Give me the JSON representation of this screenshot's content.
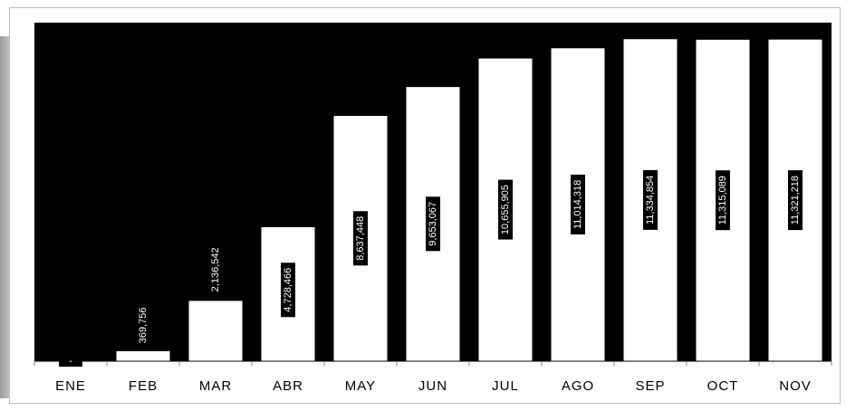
{
  "chart_data": {
    "type": "bar",
    "categories": [
      "ENE",
      "FEB",
      "MAR",
      "ABR",
      "MAY",
      "JUN",
      "JUL",
      "AGO",
      "SEP",
      "OCT",
      "NOV"
    ],
    "values": [
      0,
      369756,
      2136542,
      4728466,
      8637448,
      9653067,
      10655905,
      11014318,
      11334854,
      11315089,
      11321218
    ],
    "data_labels": [
      "-",
      "369,756",
      "2,136,542",
      "4,728,466",
      "8,637,448",
      "9,653,067",
      "10,655,905",
      "11,014,318",
      "11,334,854",
      "11,315,089",
      "11,321,218"
    ],
    "title": "",
    "xlabel": "",
    "ylabel": "",
    "ylim": [
      0,
      11900000
    ],
    "grid": false,
    "legend": "none",
    "colors": {
      "plot_background": "#000000",
      "bar_fill": "#ffffff",
      "label_box": "#000000",
      "label_text": "#ffffff"
    }
  }
}
